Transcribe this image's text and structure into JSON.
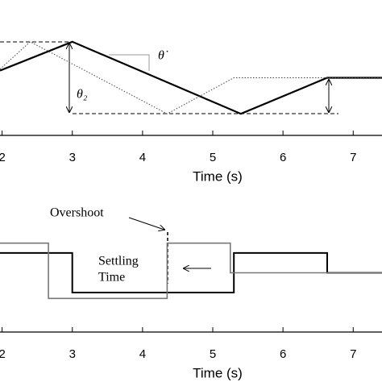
{
  "chart_data": [
    {
      "type": "line",
      "xlabel": "Time (s)",
      "xlim": [
        1.97,
        7.41
      ],
      "ylim": [
        -0.3,
        1.58
      ],
      "xticks": [
        2,
        3,
        4,
        5,
        6,
        7
      ],
      "annotations": [
        "θ̇",
        "θ₂"
      ],
      "series": [
        {
          "color": "#000000",
          "style": "solid",
          "width": 2.2,
          "x": [
            1.97,
            3,
            5.4,
            6.63,
            7.41
          ],
          "values": [
            0.6,
            1,
            0,
            0.5,
            0.5
          ]
        },
        {
          "color": "#444444",
          "style": "dotted",
          "width": 1,
          "x": [
            1.97,
            2.4,
            4.35,
            5.3,
            7.41
          ],
          "values": [
            0.62,
            1,
            0,
            0.5,
            0.5
          ]
        }
      ]
    },
    {
      "type": "line",
      "xlabel": "Time (s)",
      "xlim": [
        1.97,
        7.41
      ],
      "ylim": [
        -3,
        4.18
      ],
      "xticks": [
        2,
        3,
        4,
        5,
        6,
        7
      ],
      "annotations": [
        "Overshoot",
        "Settling",
        "Time"
      ],
      "series": [
        {
          "color": "#000000",
          "style": "solid",
          "width": 2,
          "x": [
            1.97,
            3,
            3,
            5.3,
            5.3,
            6.63,
            6.63,
            7.41
          ],
          "values": [
            1,
            1,
            -1,
            -1,
            1,
            1,
            0,
            0
          ]
        },
        {
          "color": "#777777",
          "style": "solid",
          "width": 1.6,
          "x": [
            1.97,
            2.66,
            2.66,
            4.35,
            4.35,
            5.25,
            5.25,
            7.41
          ],
          "values": [
            1.5,
            1.5,
            -1.3,
            -1.3,
            1.5,
            1.5,
            0,
            0
          ]
        }
      ]
    }
  ]
}
